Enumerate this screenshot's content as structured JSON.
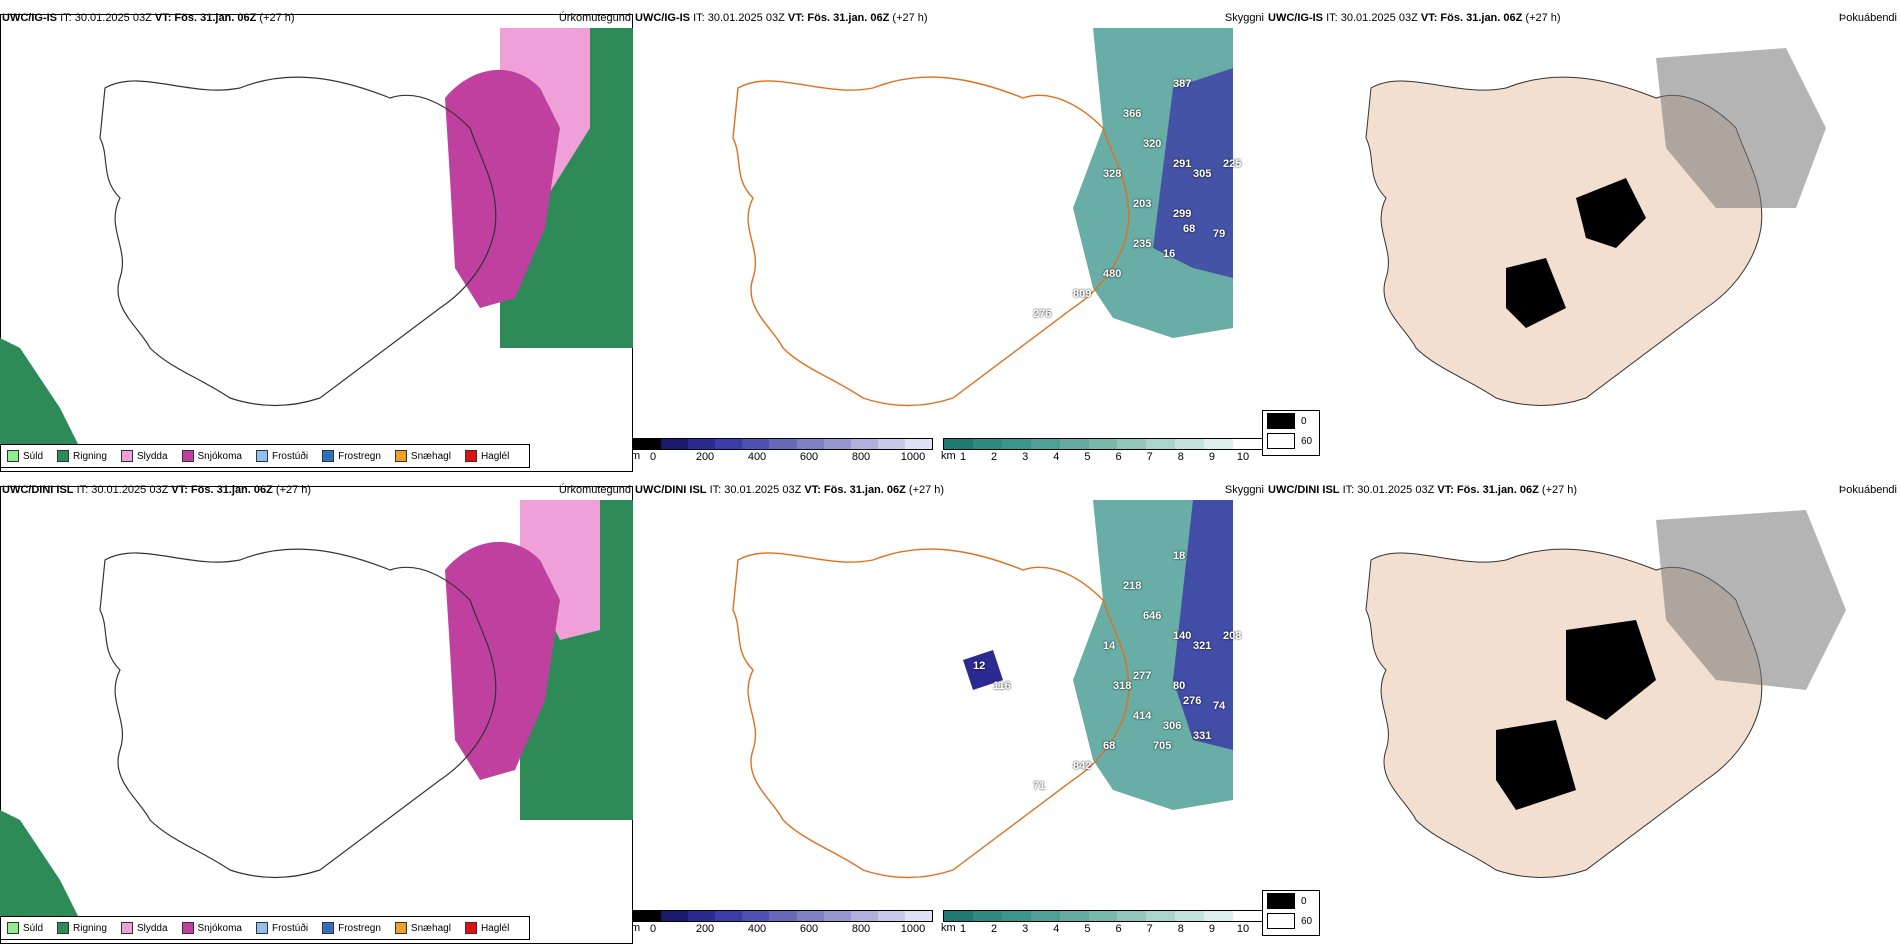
{
  "rows": [
    {
      "model": "UWC/IG-IS",
      "it": "IT: 30.01.2025 03Z",
      "vt_label": "VT:",
      "vt": "Fös. 31.jan. 06Z",
      "lead": "(+27 h)",
      "visibility_labels": [
        "387",
        "366",
        "320",
        "291",
        "328",
        "305",
        "225",
        "203",
        "299",
        "68",
        "79",
        "235",
        "16",
        "480",
        "809",
        "276"
      ],
      "rain_labels": []
    },
    {
      "model": "UWC/DINI ISL",
      "it": "IT: 30.01.2025 03Z",
      "vt_label": "VT:",
      "vt": "Fös. 31.jan. 06Z",
      "lead": "(+27 h)",
      "visibility_labels": [
        "18",
        "218",
        "646",
        "140",
        "14",
        "321",
        "208",
        "277",
        "80",
        "276",
        "74",
        "414",
        "306",
        "68",
        "842",
        "71",
        "705",
        "318",
        "331",
        "12",
        "116"
      ],
      "rain_labels": []
    }
  ],
  "panels": {
    "precip_title": "Úrkomutegund",
    "visibility_title": "Skyggni",
    "fog_title": "Þokuábendi"
  },
  "precip_legend": [
    {
      "label": "Súld",
      "color": "#90ee90"
    },
    {
      "label": "Rigning",
      "color": "#2e8b57"
    },
    {
      "label": "Slydda",
      "color": "#f0a0d8"
    },
    {
      "label": "Snjókoma",
      "color": "#c040a0"
    },
    {
      "label": "Frostúði",
      "color": "#90c0f0"
    },
    {
      "label": "Frostregn",
      "color": "#3070c0"
    },
    {
      "label": "Snæhagl",
      "color": "#f0a020"
    },
    {
      "label": "Haglél",
      "color": "#e01010"
    }
  ],
  "ceiling_bar": {
    "unit": "m",
    "ticks": [
      "0",
      "200",
      "400",
      "600",
      "800",
      "1000"
    ],
    "colors": [
      "#000000",
      "#1a1a6a",
      "#2a2a90",
      "#3c3ca8",
      "#5050b0",
      "#6868b8",
      "#7e7ec4",
      "#9898d0",
      "#b0b0dc",
      "#c8c8e8",
      "#e0e0f4"
    ]
  },
  "vis_bar": {
    "unit": "km",
    "ticks": [
      "1",
      "2",
      "3",
      "4",
      "5",
      "6",
      "7",
      "8",
      "9",
      "10"
    ],
    "colors": [
      "#1f7a72",
      "#2c8a80",
      "#3a958b",
      "#4ea096",
      "#64aca2",
      "#7ab8ae",
      "#92c6bc",
      "#aad4cc",
      "#c4e2dc",
      "#dff0ec",
      "#ffffff"
    ]
  },
  "fog_legend": {
    "items": [
      {
        "label": "0",
        "color": "#000000"
      },
      {
        "label": "60",
        "color": "#ffffff"
      }
    ]
  }
}
